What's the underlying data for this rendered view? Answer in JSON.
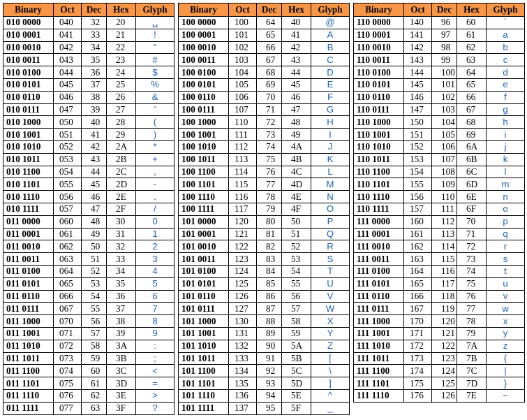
{
  "headers": [
    "Binary",
    "Oct",
    "Dec",
    "Hex",
    "Glyph"
  ],
  "tables": [
    {
      "rows": [
        [
          "010 0000",
          "040",
          "32",
          "20",
          "␣"
        ],
        [
          "010 0001",
          "041",
          "33",
          "21",
          "!"
        ],
        [
          "010 0010",
          "042",
          "34",
          "22",
          "\""
        ],
        [
          "010 0011",
          "043",
          "35",
          "23",
          "#"
        ],
        [
          "010 0100",
          "044",
          "36",
          "24",
          "$"
        ],
        [
          "010 0101",
          "045",
          "37",
          "25",
          "%"
        ],
        [
          "010 0110",
          "046",
          "38",
          "26",
          "&"
        ],
        [
          "010 0111",
          "047",
          "39",
          "27",
          "'"
        ],
        [
          "010 1000",
          "050",
          "40",
          "28",
          "("
        ],
        [
          "010 1001",
          "051",
          "41",
          "29",
          ")"
        ],
        [
          "010 1010",
          "052",
          "42",
          "2A",
          "*"
        ],
        [
          "010 1011",
          "053",
          "43",
          "2B",
          "+"
        ],
        [
          "010 1100",
          "054",
          "44",
          "2C",
          ","
        ],
        [
          "010 1101",
          "055",
          "45",
          "2D",
          "-"
        ],
        [
          "010 1110",
          "056",
          "46",
          "2E",
          "."
        ],
        [
          "010 1111",
          "057",
          "47",
          "2F",
          "/"
        ],
        [
          "011 0000",
          "060",
          "48",
          "30",
          "0"
        ],
        [
          "011 0001",
          "061",
          "49",
          "31",
          "1"
        ],
        [
          "011 0010",
          "062",
          "50",
          "32",
          "2"
        ],
        [
          "011 0011",
          "063",
          "51",
          "33",
          "3"
        ],
        [
          "011 0100",
          "064",
          "52",
          "34",
          "4"
        ],
        [
          "011 0101",
          "065",
          "53",
          "35",
          "5"
        ],
        [
          "011 0110",
          "066",
          "54",
          "36",
          "6"
        ],
        [
          "011 0111",
          "067",
          "55",
          "37",
          "7"
        ],
        [
          "011 1000",
          "070",
          "56",
          "38",
          "8"
        ],
        [
          "011 1001",
          "071",
          "57",
          "39",
          "9"
        ],
        [
          "011 1010",
          "072",
          "58",
          "3A",
          ":"
        ],
        [
          "011 1011",
          "073",
          "59",
          "3B",
          ";"
        ],
        [
          "011 1100",
          "074",
          "60",
          "3C",
          "<"
        ],
        [
          "011 1101",
          "075",
          "61",
          "3D",
          "="
        ],
        [
          "011 1110",
          "076",
          "62",
          "3E",
          ">"
        ],
        [
          "011 1111",
          "077",
          "63",
          "3F",
          "?"
        ]
      ]
    },
    {
      "rows": [
        [
          "100 0000",
          "100",
          "64",
          "40",
          "@"
        ],
        [
          "100 0001",
          "101",
          "65",
          "41",
          "A"
        ],
        [
          "100 0010",
          "102",
          "66",
          "42",
          "B"
        ],
        [
          "100 0011",
          "103",
          "67",
          "43",
          "C"
        ],
        [
          "100 0100",
          "104",
          "68",
          "44",
          "D"
        ],
        [
          "100 0101",
          "105",
          "69",
          "45",
          "E"
        ],
        [
          "100 0110",
          "106",
          "70",
          "46",
          "F"
        ],
        [
          "100 0111",
          "107",
          "71",
          "47",
          "G"
        ],
        [
          "100 1000",
          "110",
          "72",
          "48",
          "H"
        ],
        [
          "100 1001",
          "111",
          "73",
          "49",
          "I"
        ],
        [
          "100 1010",
          "112",
          "74",
          "4A",
          "J"
        ],
        [
          "100 1011",
          "113",
          "75",
          "4B",
          "K"
        ],
        [
          "100 1100",
          "114",
          "76",
          "4C",
          "L"
        ],
        [
          "100 1101",
          "115",
          "77",
          "4D",
          "M"
        ],
        [
          "100 1110",
          "116",
          "78",
          "4E",
          "N"
        ],
        [
          "100 1111",
          "117",
          "79",
          "4F",
          "O"
        ],
        [
          "101 0000",
          "120",
          "80",
          "50",
          "P"
        ],
        [
          "101 0001",
          "121",
          "81",
          "51",
          "Q"
        ],
        [
          "101 0010",
          "122",
          "82",
          "52",
          "R"
        ],
        [
          "101 0011",
          "123",
          "83",
          "53",
          "S"
        ],
        [
          "101 0100",
          "124",
          "84",
          "54",
          "T"
        ],
        [
          "101 0101",
          "125",
          "85",
          "55",
          "U"
        ],
        [
          "101 0110",
          "126",
          "86",
          "56",
          "V"
        ],
        [
          "101 0111",
          "127",
          "87",
          "57",
          "W"
        ],
        [
          "101 1000",
          "130",
          "88",
          "58",
          "X"
        ],
        [
          "101 1001",
          "131",
          "89",
          "59",
          "Y"
        ],
        [
          "101 1010",
          "132",
          "90",
          "5A",
          "Z"
        ],
        [
          "101 1011",
          "133",
          "91",
          "5B",
          "["
        ],
        [
          "101 1100",
          "134",
          "92",
          "5C",
          "\\"
        ],
        [
          "101 1101",
          "135",
          "93",
          "5D",
          "]"
        ],
        [
          "101 1110",
          "136",
          "94",
          "5E",
          "^"
        ],
        [
          "101 1111",
          "137",
          "95",
          "5F",
          "_"
        ]
      ]
    },
    {
      "rows": [
        [
          "110 0000",
          "140",
          "96",
          "60",
          "`"
        ],
        [
          "110 0001",
          "141",
          "97",
          "61",
          "a"
        ],
        [
          "110 0010",
          "142",
          "98",
          "62",
          "b"
        ],
        [
          "110 0011",
          "143",
          "99",
          "63",
          "c"
        ],
        [
          "110 0100",
          "144",
          "100",
          "64",
          "d"
        ],
        [
          "110 0101",
          "145",
          "101",
          "65",
          "e"
        ],
        [
          "110 0110",
          "146",
          "102",
          "66",
          "f"
        ],
        [
          "110 0111",
          "147",
          "103",
          "67",
          "g"
        ],
        [
          "110 1000",
          "150",
          "104",
          "68",
          "h"
        ],
        [
          "110 1001",
          "151",
          "105",
          "69",
          "i"
        ],
        [
          "110 1010",
          "152",
          "106",
          "6A",
          "j"
        ],
        [
          "110 1011",
          "153",
          "107",
          "6B",
          "k"
        ],
        [
          "110 1100",
          "154",
          "108",
          "6C",
          "l"
        ],
        [
          "110 1101",
          "155",
          "109",
          "6D",
          "m"
        ],
        [
          "110 1110",
          "156",
          "110",
          "6E",
          "n"
        ],
        [
          "110 1111",
          "157",
          "111",
          "6F",
          "o"
        ],
        [
          "111 0000",
          "160",
          "112",
          "70",
          "p"
        ],
        [
          "111 0001",
          "161",
          "113",
          "71",
          "q"
        ],
        [
          "111 0010",
          "162",
          "114",
          "72",
          "r"
        ],
        [
          "111 0011",
          "163",
          "115",
          "73",
          "s"
        ],
        [
          "111 0100",
          "164",
          "116",
          "74",
          "t"
        ],
        [
          "111 0101",
          "165",
          "117",
          "75",
          "u"
        ],
        [
          "111 0110",
          "166",
          "118",
          "76",
          "v"
        ],
        [
          "111 0111",
          "167",
          "119",
          "77",
          "w"
        ],
        [
          "111 1000",
          "170",
          "120",
          "78",
          "x"
        ],
        [
          "111 1001",
          "171",
          "121",
          "79",
          "y"
        ],
        [
          "111 1010",
          "172",
          "122",
          "7A",
          "z"
        ],
        [
          "111 1011",
          "173",
          "123",
          "7B",
          "{"
        ],
        [
          "111 1100",
          "174",
          "124",
          "7C",
          "|"
        ],
        [
          "111 1101",
          "175",
          "125",
          "7D",
          "}"
        ],
        [
          "111 1110",
          "176",
          "126",
          "7E",
          "~"
        ]
      ]
    }
  ]
}
